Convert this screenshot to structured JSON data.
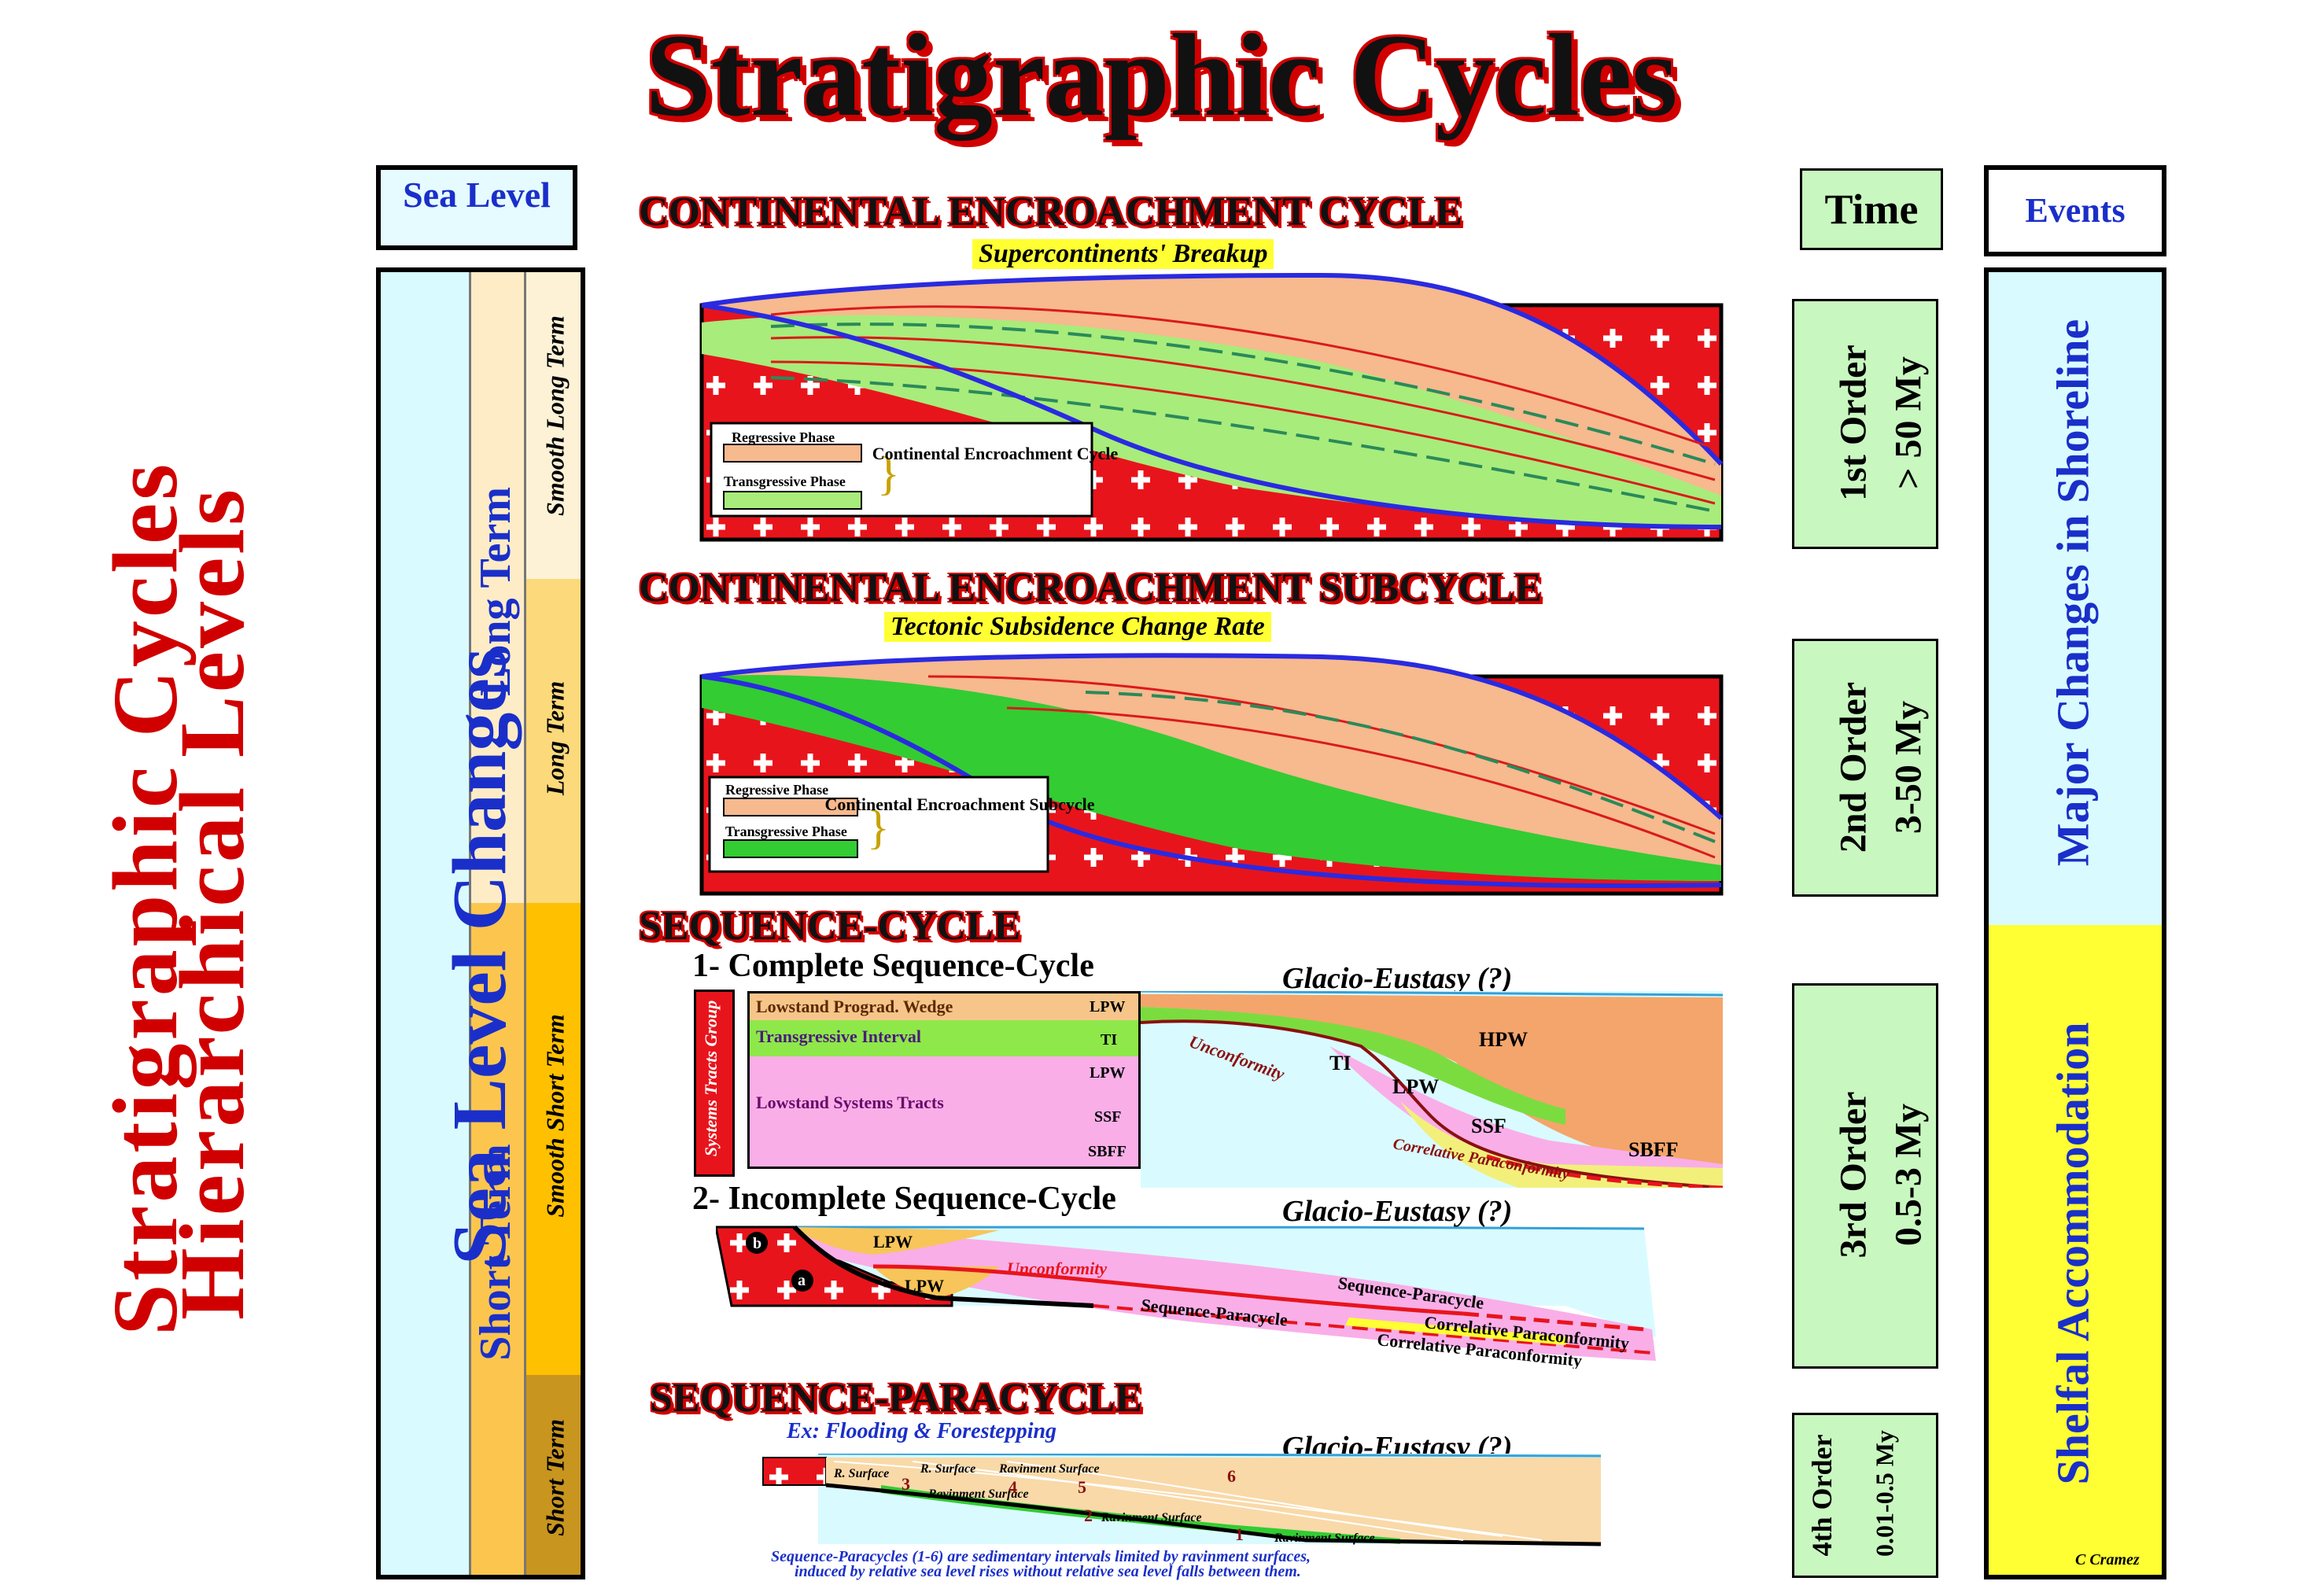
{
  "title": "Stratigraphic Cycles",
  "side_title": {
    "line1": "Stratigraphic Cycles",
    "line2": "Hierarchical Levels"
  },
  "sea_level": {
    "header": "Sea Level",
    "main": "Sea Level Changes",
    "long_term": "Long Term",
    "short_term": "Short Term",
    "smooth_long_term": "Smooth Long Term",
    "long_term_small": "Long Term",
    "smooth_short_term": "Smooth Short Term",
    "short_term_small": "Short Term"
  },
  "sections": {
    "s1": {
      "title": "CONTINENTAL ENCROACHMENT CYCLE",
      "subtitle": "Supercontinents' Breakup",
      "legend": {
        "regressive": "Regressive Phase",
        "transgressive": "Transgressive Phase",
        "name": "Continental Encroachment Cycle"
      }
    },
    "s2": {
      "title": "CONTINENTAL ENCROACHMENT SUBCYCLE",
      "subtitle": "Tectonic Subsidence Change Rate",
      "legend": {
        "regressive": "Regressive Phase",
        "transgressive": "Transgressive Phase",
        "name": "Continental Encroachment Subcycle"
      }
    },
    "s3": {
      "title": "SEQUENCE-CYCLE",
      "sub1": "1- Complete Sequence-Cycle",
      "sub2": "2- Incomplete Sequence-Cycle",
      "glacio": "Glacio-Eustasy (?)",
      "stg": "Systems Tracts Group",
      "rows": [
        {
          "label": "Lowstand Prograd. Wedge",
          "code": "LPW"
        },
        {
          "label": "Transgressive Interval",
          "code": "TI"
        },
        {
          "label": "Lowstand Systems Tracts",
          "codes": [
            "LPW",
            "SSF",
            "SBFF"
          ]
        }
      ],
      "diagram1": {
        "unconformity": "Unconformity",
        "ti": "TI",
        "hpw": "HPW",
        "lpw": "LPW",
        "ssf": "SSF",
        "sbff": "SBFF",
        "corr": "Correlative Paraconformity"
      },
      "diagram2": {
        "lpw1": "LPW",
        "lpw2": "LPW",
        "unconformity": "Unconformity",
        "seqpara1": "Sequence-Paracycle",
        "seqpara2": "Sequence-Paracycle",
        "corr1": "Correlative Paraconformity",
        "corr2": "Correlative Paraconformity",
        "a": "a",
        "b": "b"
      }
    },
    "s4": {
      "title": "SEQUENCE-PARACYCLE",
      "subtitle": "Ex: Flooding & Forestepping",
      "glacio": "Glacio-Eustasy (?)",
      "labels": {
        "r_surface": "R. Surface",
        "r_surface2": "R. Surface",
        "ravinment1": "Ravinment Surface",
        "ravinment2": "Ravinment Surface",
        "ravinment3": "Ravinment Surface",
        "ravinment4": "Ravinment Surface",
        "n1": "1",
        "n2": "2",
        "n3": "3",
        "n4": "4",
        "n5": "5",
        "n6": "6"
      },
      "footnote1": "Sequence-Paracycles (1-6) are sedimentary intervals limited by ravinment surfaces,",
      "footnote2": "induced by relative sea level rises without relative sea level falls between them."
    }
  },
  "time": {
    "header": "Time",
    "orders": [
      {
        "order": "1st Order",
        "range": "> 50 My"
      },
      {
        "order": "2nd Order",
        "range": "3-50 My"
      },
      {
        "order": "3rd Order",
        "range": "0.5-3 My"
      },
      {
        "order": "4th Order",
        "range": "0.01-0.5 My"
      }
    ]
  },
  "events": {
    "header": "Events",
    "upper": "Major Changes in Shoreline",
    "lower": "Shelfal Accommodation",
    "credit": "C Cramez"
  },
  "colors": {
    "red": "#d10000",
    "blue": "#1a2fc9",
    "green_box": "#c9f7c0",
    "cyan": "#d9fbff",
    "yellow": "#ffff33"
  }
}
